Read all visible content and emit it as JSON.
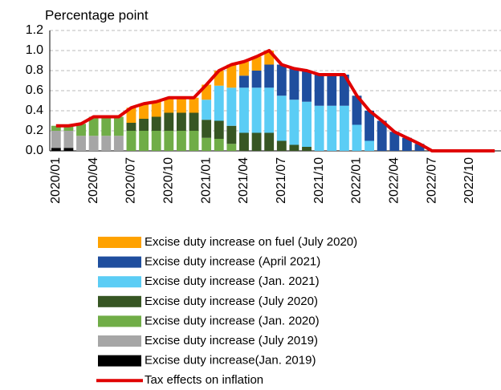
{
  "chart_data": {
    "type": "bar",
    "stacked": true,
    "title": "Percentage point",
    "categories": [
      "2020/01",
      null,
      null,
      "2020/04",
      null,
      null,
      "2020/07",
      null,
      null,
      "2020/10",
      null,
      null,
      "2021/01",
      null,
      null,
      "2021/04",
      null,
      null,
      "2021/07",
      null,
      null,
      "2021/10",
      null,
      null,
      "2022/01",
      null,
      null,
      "2022/04",
      null,
      null,
      "2022/07",
      null,
      null,
      "2022/10",
      null,
      null
    ],
    "series": [
      {
        "name": "Excise duty increase(Jan. 2019)",
        "color": "#000000",
        "values": [
          0.03,
          0.03,
          0,
          0,
          0,
          0,
          0,
          0,
          0,
          0,
          0,
          0,
          0,
          0,
          0,
          0,
          0,
          0,
          0,
          0,
          0,
          0,
          0,
          0,
          0,
          0,
          0,
          0,
          0,
          0,
          0,
          0,
          0,
          0,
          0,
          0
        ]
      },
      {
        "name": "Excise duty increase (July 2019)",
        "color": "#a6a6a6",
        "values": [
          0.17,
          0.17,
          0.15,
          0.15,
          0.15,
          0.15,
          0,
          0,
          0,
          0,
          0,
          0,
          0,
          0,
          0,
          0,
          0,
          0,
          0,
          0,
          0,
          0,
          0,
          0,
          0,
          0,
          0,
          0,
          0,
          0,
          0,
          0,
          0,
          0,
          0,
          0
        ]
      },
      {
        "name": "Excise duty increase (Jan. 2020)",
        "color": "#70ad47",
        "values": [
          0.05,
          0.05,
          0.12,
          0.19,
          0.19,
          0.19,
          0.2,
          0.2,
          0.2,
          0.2,
          0.2,
          0.2,
          0.13,
          0.12,
          0.07,
          0,
          0,
          0,
          0,
          0,
          0,
          0,
          0,
          0,
          0,
          0,
          0,
          0,
          0,
          0,
          0,
          0,
          0,
          0,
          0,
          0
        ]
      },
      {
        "name": "Excise duty increase (July 2020)",
        "color": "#375623",
        "values": [
          0,
          0,
          0,
          0,
          0,
          0,
          0.08,
          0.12,
          0.14,
          0.18,
          0.18,
          0.18,
          0.18,
          0.18,
          0.18,
          0.18,
          0.18,
          0.18,
          0.1,
          0.06,
          0.04,
          0,
          0,
          0,
          0,
          0,
          0,
          0,
          0,
          0,
          0,
          0,
          0,
          0,
          0,
          0
        ]
      },
      {
        "name": "Excise duty increase (Jan. 2021)",
        "color": "#5bcdf5",
        "values": [
          0,
          0,
          0,
          0,
          0,
          0,
          0,
          0,
          0,
          0,
          0,
          0,
          0.2,
          0.35,
          0.38,
          0.45,
          0.45,
          0.45,
          0.45,
          0.45,
          0.45,
          0.45,
          0.45,
          0.45,
          0.26,
          0.1,
          0,
          0,
          0,
          0,
          0,
          0,
          0,
          0,
          0,
          0
        ]
      },
      {
        "name": "Excise duty increase (April 2021)",
        "color": "#1f4e9e",
        "values": [
          0,
          0,
          0,
          0,
          0,
          0,
          0,
          0,
          0,
          0,
          0,
          0,
          0,
          0,
          0,
          0.12,
          0.17,
          0.23,
          0.31,
          0.31,
          0.31,
          0.31,
          0.31,
          0.31,
          0.29,
          0.3,
          0.3,
          0.19,
          0.13,
          0.07,
          0,
          0,
          0,
          0,
          0,
          0
        ]
      },
      {
        "name": "Excise duty increase on fuel (July 2020)",
        "color": "#ffa200",
        "values": [
          0,
          0,
          0,
          0,
          0,
          0,
          0.15,
          0.15,
          0.15,
          0.15,
          0.15,
          0.15,
          0.15,
          0.15,
          0.23,
          0.14,
          0.14,
          0.14,
          0,
          0,
          0,
          0,
          0,
          0,
          0,
          0,
          0,
          0,
          0,
          0,
          0,
          0,
          0,
          0,
          0,
          0
        ]
      }
    ],
    "line": {
      "name": "Tax effects on inflation",
      "color": "#e00000",
      "values": [
        0.25,
        0.25,
        0.27,
        0.34,
        0.34,
        0.34,
        0.43,
        0.47,
        0.49,
        0.53,
        0.53,
        0.53,
        0.66,
        0.8,
        0.86,
        0.89,
        0.94,
        1.0,
        0.86,
        0.82,
        0.8,
        0.76,
        0.76,
        0.76,
        0.55,
        0.4,
        0.3,
        0.19,
        0.13,
        0.07,
        0,
        0,
        0,
        0,
        0,
        0
      ]
    },
    "ylim": [
      0,
      1.2
    ],
    "yticks": [
      {
        "value": 0,
        "label": "0.0"
      },
      0.2,
      0.4,
      0.6,
      0.8,
      {
        "value": 1,
        "label": "1.0"
      },
      1.2
    ],
    "grid": true
  }
}
